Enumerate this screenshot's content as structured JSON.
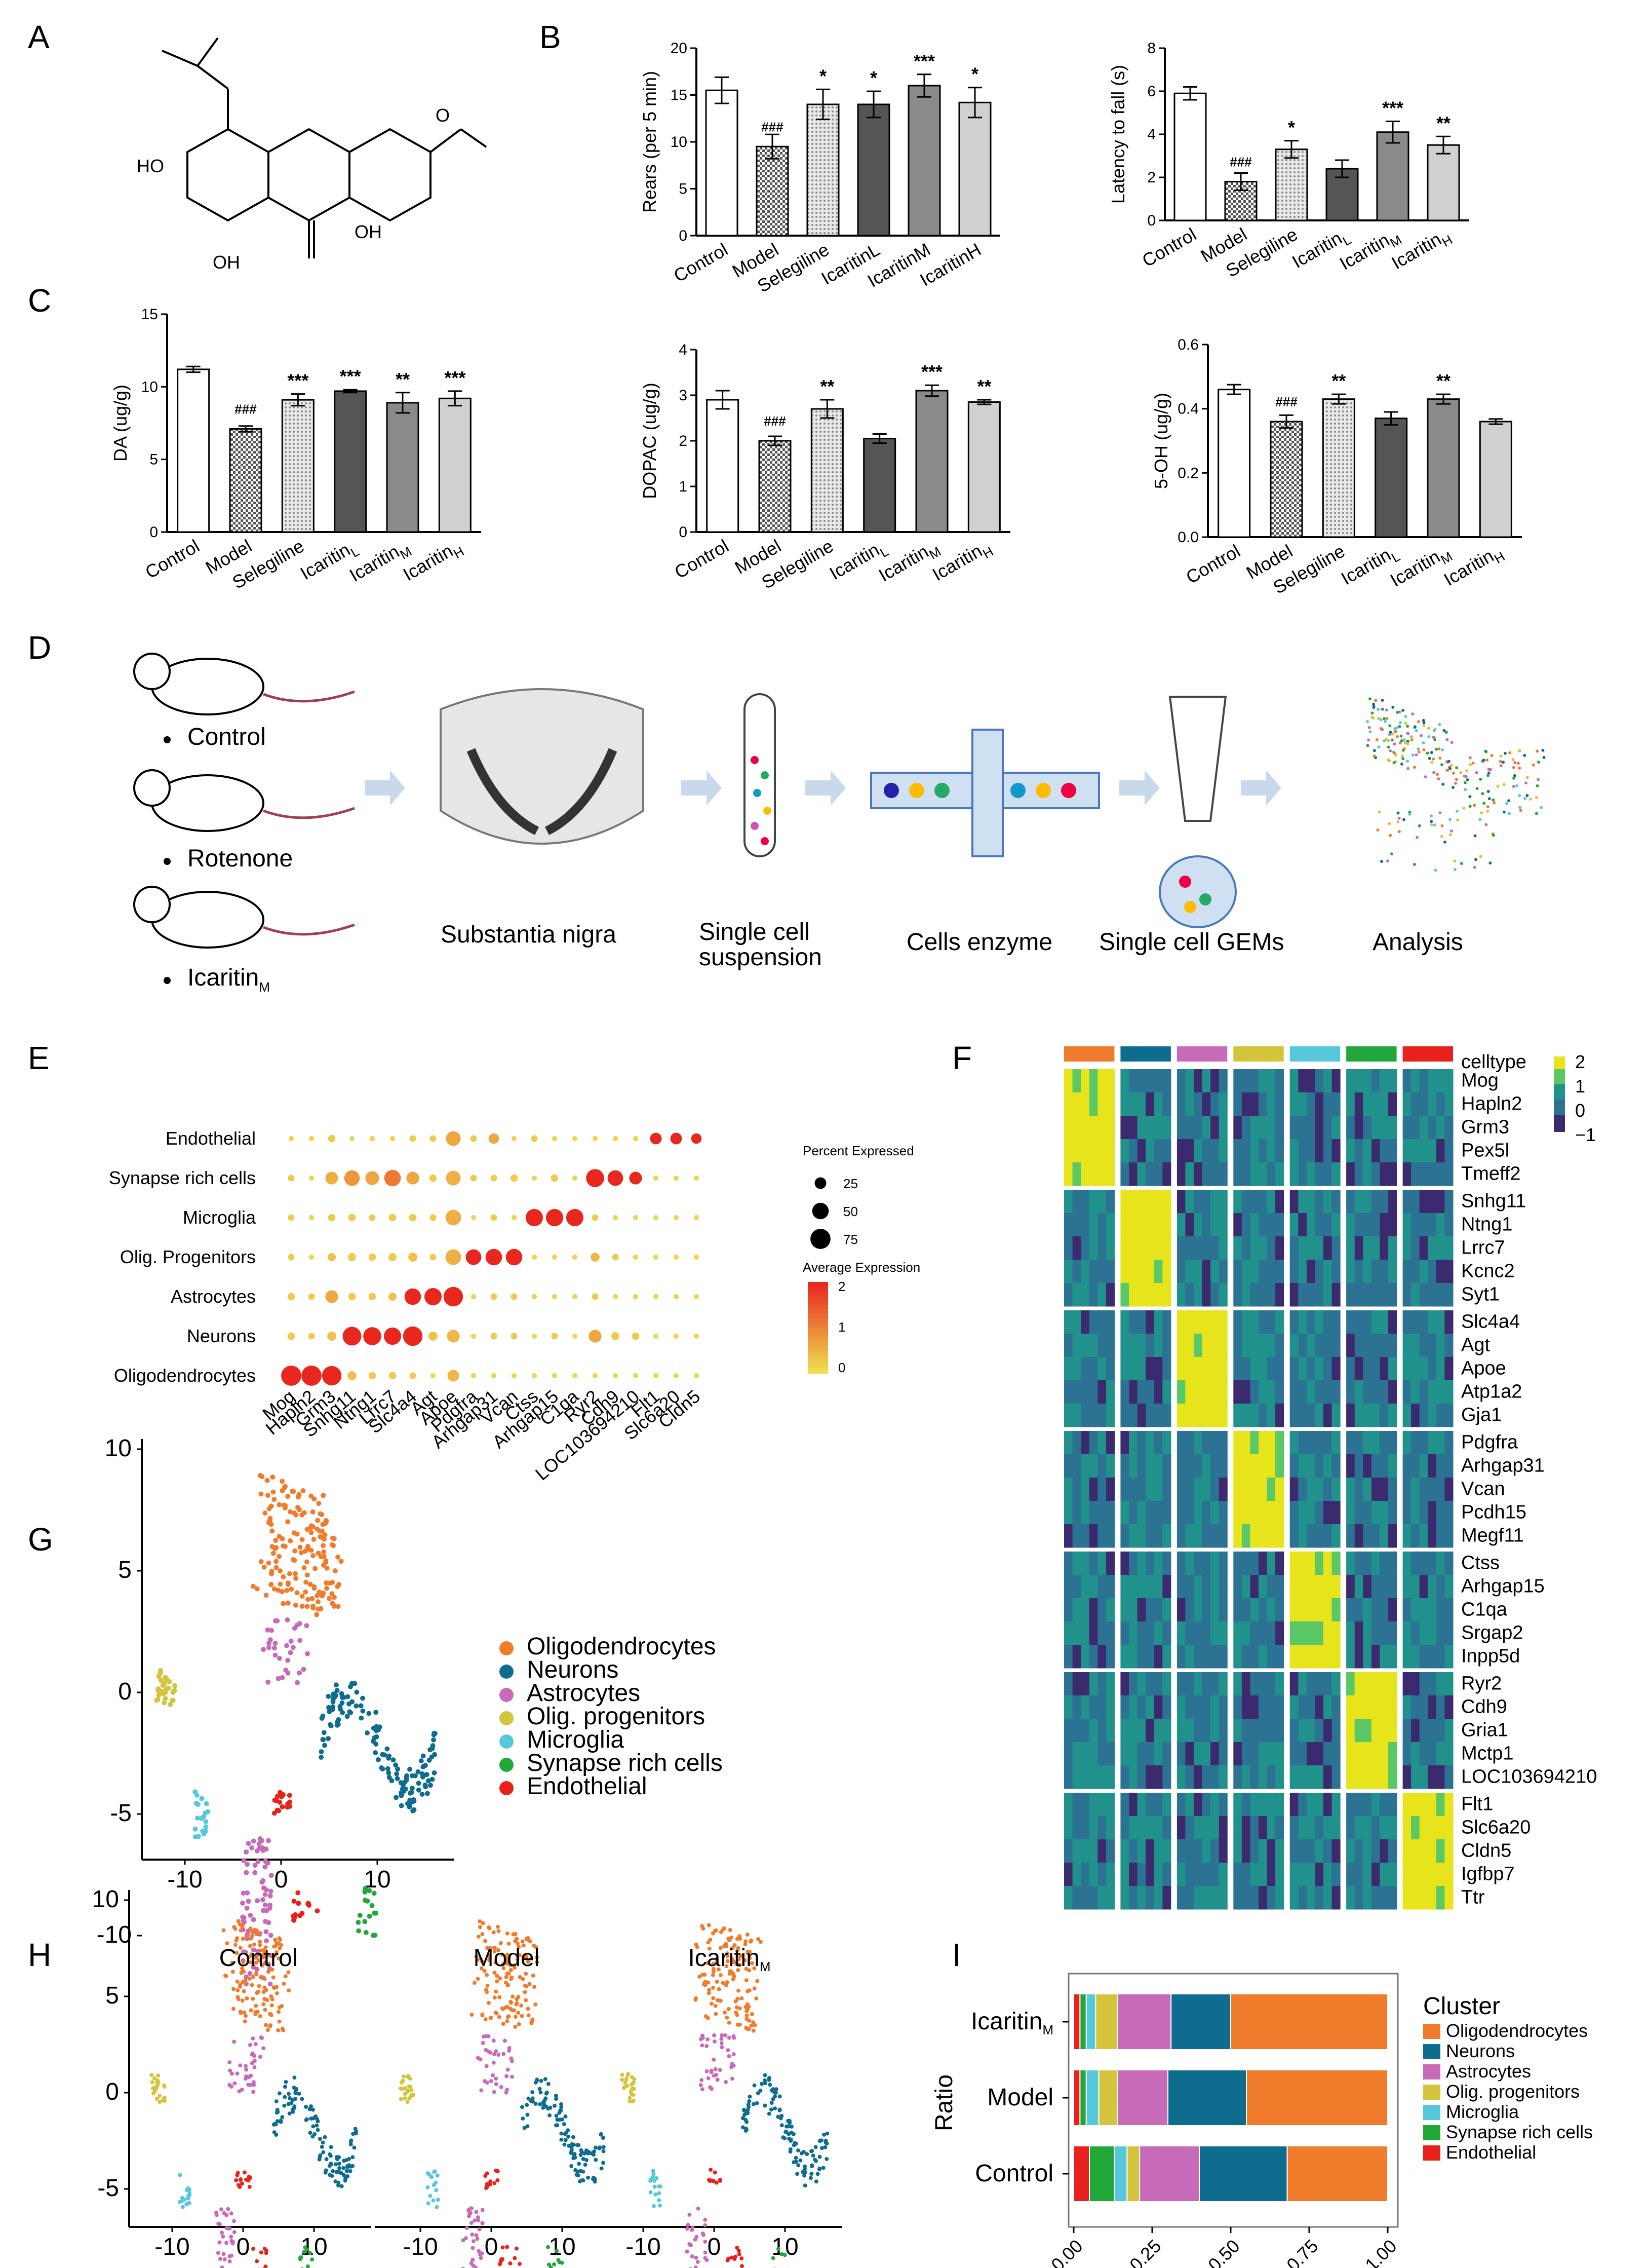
{
  "panels": {
    "A": "A",
    "B": "B",
    "C": "C",
    "D": "D",
    "E": "E",
    "F": "F",
    "G": "G",
    "H": "H",
    "I": "I"
  },
  "colors": {
    "oligodendrocytes": "#f07b2a",
    "neurons": "#0e6d8f",
    "astrocytes": "#c76bb8",
    "olig_progenitors": "#d3c43c",
    "microglia": "#55c8dc",
    "synapse": "#22a83a",
    "endothelial": "#e8211c"
  },
  "molecule": {
    "labels": [
      "HO",
      "OH",
      "OH",
      "O"
    ]
  },
  "chart_data": [
    {
      "id": "B1",
      "type": "bar",
      "title": "",
      "ylabel": "Rears (per 5 min)",
      "ylim": [
        0,
        20
      ],
      "yticks": [
        "0",
        "5",
        "10",
        "15",
        "20"
      ],
      "categories": [
        "Control",
        "Model",
        "Selegiline",
        "IcaritinL",
        "IcaritinM",
        "IcaritinH"
      ],
      "values": [
        15.5,
        9.5,
        14,
        14,
        16,
        14.2
      ],
      "errors": [
        1.4,
        1.3,
        1.6,
        1.4,
        1.2,
        1.6
      ],
      "annotations": [
        "",
        "###",
        "*",
        "*",
        "***",
        "*"
      ]
    },
    {
      "id": "B2",
      "type": "bar",
      "title": "",
      "ylabel": "Latency to fall (s)",
      "ylim": [
        0,
        8
      ],
      "yticks": [
        "0",
        "2",
        "4",
        "6",
        "8"
      ],
      "categories": [
        "Control",
        "Model",
        "Selegiline",
        "Icaritin",
        "Icaritin",
        "Icaritin"
      ],
      "subs": [
        "",
        "",
        "",
        "L",
        "M",
        "H"
      ],
      "values": [
        5.9,
        1.8,
        3.3,
        2.4,
        4.1,
        3.5
      ],
      "errors": [
        0.3,
        0.4,
        0.4,
        0.4,
        0.5,
        0.4
      ],
      "annotations": [
        "",
        "###",
        "*",
        "",
        "***",
        "**"
      ]
    },
    {
      "id": "C1",
      "type": "bar",
      "title": "",
      "ylabel": "DA (ug/g)",
      "ylim": [
        0,
        15
      ],
      "yticks": [
        "0",
        "5",
        "10",
        "15"
      ],
      "categories": [
        "Control",
        "Model",
        "Selegiline",
        "Icaritin",
        "Icaritin",
        "Icaritin"
      ],
      "subs": [
        "",
        "",
        "",
        "L",
        "M",
        "H"
      ],
      "values": [
        11.2,
        7.1,
        9.1,
        9.7,
        8.9,
        9.2
      ],
      "errors": [
        0.2,
        0.2,
        0.4,
        0.1,
        0.7,
        0.5
      ],
      "annotations": [
        "",
        "###",
        "***",
        "***",
        "**",
        "***"
      ]
    },
    {
      "id": "C2",
      "type": "bar",
      "title": "",
      "ylabel": "DOPAC (ug/g)",
      "ylim": [
        0,
        4
      ],
      "yticks": [
        "0",
        "1",
        "2",
        "3",
        "4"
      ],
      "categories": [
        "Control",
        "Model",
        "Selegiline",
        "Icaritin",
        "Icaritin",
        "Icaritin"
      ],
      "subs": [
        "",
        "",
        "",
        "L",
        "M",
        "H"
      ],
      "values": [
        2.9,
        2.0,
        2.7,
        2.05,
        3.1,
        2.85
      ],
      "errors": [
        0.2,
        0.1,
        0.2,
        0.1,
        0.12,
        0.05
      ],
      "annotations": [
        "",
        "###",
        "**",
        "",
        "***",
        "**"
      ]
    },
    {
      "id": "C3",
      "type": "bar",
      "title": "",
      "ylabel": "5-OH (ug/g)",
      "ylim": [
        0,
        0.6
      ],
      "yticks": [
        "0.0",
        "0.2",
        "0.4",
        "0.6"
      ],
      "categories": [
        "Control",
        "Model",
        "Selegiline",
        "Icaritin",
        "Icaritin",
        "Icaritin"
      ],
      "subs": [
        "",
        "",
        "",
        "L",
        "M",
        "H"
      ],
      "values": [
        0.46,
        0.36,
        0.43,
        0.37,
        0.43,
        0.36
      ],
      "errors": [
        0.015,
        0.02,
        0.015,
        0.02,
        0.015,
        0.008
      ],
      "annotations": [
        "",
        "###",
        "**",
        "",
        "**",
        ""
      ]
    },
    {
      "id": "E",
      "type": "scatter",
      "title": "dot plot",
      "rows": [
        "Oligodendrocytes",
        "Neurons",
        "Astrocytes",
        "Olig. Progenitors",
        "Microglia",
        "Synapse rich cells",
        "Endothelial"
      ],
      "genes": [
        "Mog",
        "Hapln2",
        "Grm3",
        "Snhg11",
        "Ntng1",
        "Lrrc7",
        "Slc4a4",
        "Agt",
        "Apoe",
        "Pdgfra",
        "Arhgap31",
        "Vcan",
        "Ctss",
        "Arhgap15",
        "C1qa",
        "Ryr2",
        "Cdh9",
        "LOC103694210",
        "Flt1",
        "Slc6a20",
        "Cldn5"
      ],
      "size_legend_title": "Percent Expressed",
      "size_legend": [
        "25",
        "50",
        "75"
      ],
      "color_legend_title": "Average Expression",
      "color_legend": [
        "2",
        "1",
        "0"
      ]
    },
    {
      "id": "I",
      "type": "bar",
      "orientation": "horizontal stacked",
      "ylabel": "Ratio",
      "categories": [
        "Icaritin",
        "Model",
        "Control"
      ],
      "cat_subs": [
        "M",
        "",
        ""
      ],
      "xticks": [
        "0.00",
        "0.25",
        "0.50",
        "0.75",
        "1.00"
      ],
      "series": [
        {
          "name": "Endothelial",
          "values": [
            0.02,
            0.02,
            0.05
          ]
        },
        {
          "name": "Synapse rich cells",
          "values": [
            0.02,
            0.02,
            0.08
          ]
        },
        {
          "name": "Microglia",
          "values": [
            0.03,
            0.04,
            0.04
          ]
        },
        {
          "name": "Olig. progenitors",
          "values": [
            0.07,
            0.06,
            0.04
          ]
        },
        {
          "name": "Astrocytes",
          "values": [
            0.17,
            0.16,
            0.19
          ]
        },
        {
          "name": "Neurons",
          "values": [
            0.19,
            0.25,
            0.28
          ]
        },
        {
          "name": "Oligodendrocytes",
          "values": [
            0.5,
            0.45,
            0.32
          ]
        }
      ],
      "legend_title": "Cluster"
    }
  ],
  "panelD": {
    "groups": [
      "Control",
      "Rotenone",
      "Icaritin"
    ],
    "group_sub": "M",
    "steps": [
      "Substantia nigra",
      "Single cell",
      "suspension",
      "Cells enzyme",
      "Single cell GEMs",
      "Analysis"
    ]
  },
  "panelF": {
    "legend_label": "celltype",
    "scale": [
      "2",
      "1",
      "0",
      "−1"
    ],
    "genes": [
      [
        "Mog",
        "Hapln2",
        "Grm3",
        "Pex5l",
        "Tmeff2"
      ],
      [
        "Snhg11",
        "Ntng1",
        "Lrrc7",
        "Kcnc2",
        "Syt1"
      ],
      [
        "Slc4a4",
        "Agt",
        "Apoe",
        "Atp1a2",
        "Gja1"
      ],
      [
        "Pdgfra",
        "Arhgap31",
        "Vcan",
        "Pcdh15",
        "Megf11"
      ],
      [
        "Ctss",
        "Arhgap15",
        "C1qa",
        "Srgap2",
        "Inpp5d"
      ],
      [
        "Ryr2",
        "Cdh9",
        "Gria1",
        "Mctp1",
        "LOC103694210"
      ],
      [
        "Flt1",
        "Slc6a20",
        "Cldn5",
        "Igfbp7",
        "Ttr"
      ]
    ]
  },
  "panelG": {
    "legend": [
      "Oligodendrocytes",
      "Neurons",
      "Astrocytes",
      "Olig. progenitors",
      "Microglia",
      "Synapse rich cells",
      "Endothelial"
    ],
    "yticks": [
      "10",
      "5",
      "0",
      "-5",
      "-10"
    ],
    "xticks": [
      "-10",
      "0",
      "10"
    ]
  },
  "panelH": {
    "titles": [
      "Control",
      "Model",
      "Icaritin"
    ],
    "title_sub": "M",
    "yticks": [
      "10",
      "5",
      "0",
      "-5",
      "-10"
    ],
    "xticks": [
      "-10",
      "0",
      "10"
    ]
  }
}
